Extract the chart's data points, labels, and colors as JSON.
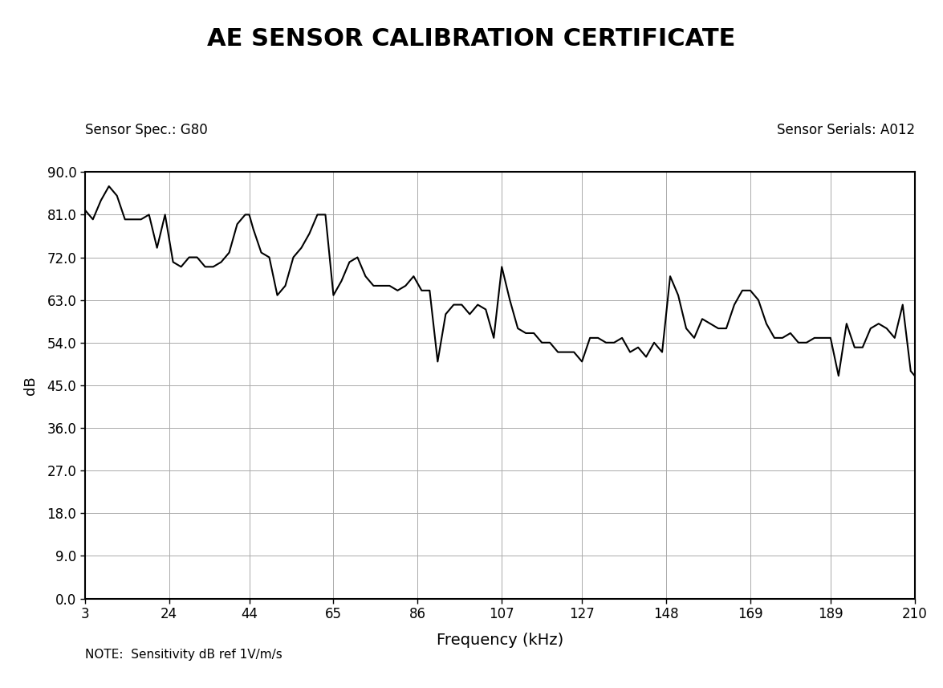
{
  "title": "AE SENSOR CALIBRATION CERTIFICATE",
  "sensor_spec": "Sensor Spec.: G80",
  "sensor_serials": "Sensor Serials: A012",
  "xlabel": "Frequency (kHz)",
  "ylabel": "dB",
  "note": "NOTE:  Sensitivity dB ref 1V/m/s",
  "xlim": [
    3,
    210
  ],
  "ylim": [
    0.0,
    90.0
  ],
  "xticks": [
    3,
    24,
    44,
    65,
    86,
    107,
    127,
    148,
    169,
    189,
    210
  ],
  "yticks": [
    0.0,
    9.0,
    18.0,
    27.0,
    36.0,
    45.0,
    54.0,
    63.0,
    72.0,
    81.0,
    90.0
  ],
  "freq": [
    3,
    5,
    7,
    9,
    11,
    13,
    15,
    17,
    19,
    21,
    23,
    25,
    27,
    29,
    31,
    33,
    35,
    37,
    39,
    41,
    43,
    44,
    45,
    47,
    49,
    51,
    53,
    55,
    57,
    59,
    61,
    63,
    65,
    67,
    69,
    71,
    73,
    75,
    77,
    79,
    81,
    83,
    85,
    87,
    89,
    91,
    93,
    95,
    97,
    99,
    101,
    103,
    105,
    107,
    109,
    111,
    113,
    115,
    117,
    119,
    121,
    123,
    125,
    127,
    129,
    131,
    133,
    135,
    137,
    139,
    141,
    143,
    145,
    147,
    149,
    151,
    153,
    155,
    157,
    159,
    161,
    163,
    165,
    167,
    169,
    171,
    173,
    175,
    177,
    179,
    181,
    183,
    185,
    187,
    189,
    191,
    193,
    195,
    197,
    199,
    201,
    203,
    205,
    207,
    209,
    210
  ],
  "dB": [
    82,
    80,
    84,
    87,
    85,
    80,
    80,
    80,
    81,
    74,
    81,
    71,
    70,
    72,
    72,
    70,
    70,
    71,
    73,
    79,
    81,
    81,
    78,
    73,
    72,
    64,
    66,
    72,
    74,
    77,
    81,
    81,
    64,
    67,
    71,
    72,
    68,
    66,
    66,
    66,
    65,
    66,
    68,
    65,
    65,
    50,
    60,
    62,
    62,
    60,
    62,
    61,
    55,
    70,
    63,
    57,
    56,
    56,
    54,
    54,
    52,
    52,
    52,
    50,
    55,
    55,
    54,
    54,
    55,
    52,
    53,
    51,
    54,
    52,
    68,
    64,
    57,
    55,
    59,
    58,
    57,
    57,
    62,
    65,
    65,
    63,
    58,
    55,
    55,
    56,
    54,
    54,
    55,
    55,
    55,
    47,
    58,
    53,
    53,
    57,
    58,
    57,
    55,
    62,
    48,
    47
  ],
  "line_color": "#000000",
  "line_width": 1.5,
  "background_color": "#ffffff",
  "grid_color": "#aaaaaa"
}
